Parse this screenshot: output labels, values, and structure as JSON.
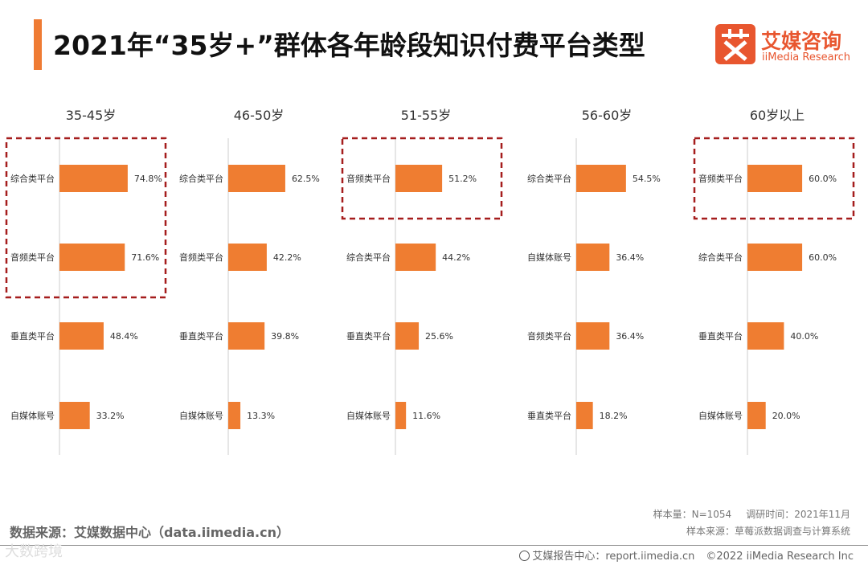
{
  "title": "2021年“35岁+”群体各年龄段知识付费平台类型",
  "logo": {
    "cn": "艾媒咨询",
    "en": "iiMedia Research",
    "mark": "艾"
  },
  "colors": {
    "bar": "#ef7d31",
    "accent": "#ef7b33",
    "highlight": "#a51d1d",
    "axis": "#cccccc"
  },
  "chart_data": [
    {
      "type": "bar",
      "title": "35-45岁",
      "categories": [
        "综合类平台",
        "音频类平台",
        "垂直类平台",
        "自媒体账号"
      ],
      "values": [
        74.8,
        71.6,
        48.4,
        33.2
      ],
      "labels": [
        "74.8%",
        "71.6%",
        "48.4%",
        "33.2%"
      ],
      "xlim": [
        0,
        100
      ],
      "highlight": [
        0,
        1
      ]
    },
    {
      "type": "bar",
      "title": "46-50岁",
      "categories": [
        "综合类平台",
        "音频类平台",
        "垂直类平台",
        "自媒体账号"
      ],
      "values": [
        62.5,
        42.2,
        39.8,
        13.3
      ],
      "labels": [
        "62.5%",
        "42.2%",
        "39.8%",
        "13.3%"
      ],
      "xlim": [
        0,
        100
      ],
      "highlight": []
    },
    {
      "type": "bar",
      "title": "51-55岁",
      "categories": [
        "音频类平台",
        "综合类平台",
        "垂直类平台",
        "自媒体账号"
      ],
      "values": [
        51.2,
        44.2,
        25.6,
        11.6
      ],
      "labels": [
        "51.2%",
        "44.2%",
        "25.6%",
        "11.6%"
      ],
      "xlim": [
        0,
        100
      ],
      "highlight": [
        0,
        0
      ]
    },
    {
      "type": "bar",
      "title": "56-60岁",
      "categories": [
        "综合类平台",
        "自媒体账号",
        "音频类平台",
        "垂直类平台"
      ],
      "values": [
        54.5,
        36.4,
        36.4,
        18.2
      ],
      "labels": [
        "54.5%",
        "36.4%",
        "36.4%",
        "18.2%"
      ],
      "xlim": [
        0,
        100
      ],
      "highlight": []
    },
    {
      "type": "bar",
      "title": "60岁以上",
      "categories": [
        "音频类平台",
        "综合类平台",
        "垂直类平台",
        "自媒体账号"
      ],
      "values": [
        60.0,
        60.0,
        40.0,
        20.0
      ],
      "labels": [
        "60.0%",
        "60.0%",
        "40.0%",
        "20.0%"
      ],
      "xlim": [
        0,
        100
      ],
      "highlight": [
        0,
        0
      ]
    }
  ],
  "source": "数据来源：艾媒数据中心（data.iimedia.cn）",
  "sample_size": "样本量：N=1054",
  "survey_time": "调研时间：2021年11月",
  "sample_source": "样本来源：草莓派数据调查与计算系统",
  "footer": {
    "report_center": "艾媒报告中心：report.iimedia.cn",
    "copyright": "©2022  iiMedia Research  Inc"
  },
  "watermark": "大数跨境"
}
